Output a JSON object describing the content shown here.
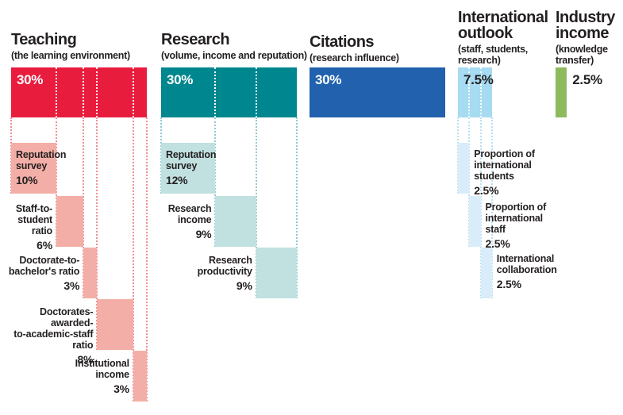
{
  "chart_data": {
    "type": "bar",
    "description": "University ranking methodology: five weighted pillars (stacked breakdown bars with sub-component blocks)",
    "unit": "percent of overall score",
    "total": 100,
    "text_color": "#231f20",
    "pillars": [
      {
        "id": "teaching",
        "title": "Teaching",
        "subtitle": "(the learning environment)",
        "weight": 30,
        "weight_label": "30%",
        "color": "#e81c3d",
        "sub_color": "#f3afa7",
        "line_color": "#f18f97",
        "weight_label_placement": "inside",
        "weight_label_color": "#ffffff",
        "components": [
          {
            "label": "Reputation\nsurvey",
            "pct_label": "10%",
            "weight": 10,
            "label_side": "inside"
          },
          {
            "label": "Staff-to-\nstudent\nratio",
            "pct_label": "6%",
            "weight": 6,
            "label_side": "left"
          },
          {
            "label": "Doctorate-to-\nbachelor's ratio",
            "pct_label": "3%",
            "weight": 3,
            "label_side": "left"
          },
          {
            "label": "Doctorates-awarded-\nto-academic-staff\nratio",
            "pct_label": "8%",
            "weight": 8,
            "label_side": "left"
          },
          {
            "label": "Institutional\nincome",
            "pct_label": "3%",
            "weight": 3,
            "label_side": "left"
          }
        ]
      },
      {
        "id": "research",
        "title": "Research",
        "subtitle": "(volume, income and reputation)",
        "weight": 30,
        "weight_label": "30%",
        "color": "#00868e",
        "sub_color": "#c1e1e0",
        "line_color": "#8fccd0",
        "weight_label_placement": "inside",
        "weight_label_color": "#ffffff",
        "components": [
          {
            "label": "Reputation\nsurvey",
            "pct_label": "12%",
            "weight": 12,
            "label_side": "inside"
          },
          {
            "label": "Research\nincome",
            "pct_label": "9%",
            "weight": 9,
            "label_side": "left"
          },
          {
            "label": "Research\nproductivity",
            "pct_label": "9%",
            "weight": 9,
            "label_side": "left"
          }
        ]
      },
      {
        "id": "citations",
        "title": "Citations",
        "subtitle": "(research influence)",
        "weight": 30,
        "weight_label": "30%",
        "color": "#2161ae",
        "sub_color": "",
        "line_color": "",
        "weight_label_placement": "inside",
        "weight_label_color": "#ffffff",
        "components": []
      },
      {
        "id": "international-outlook",
        "title": "International\noutlook",
        "subtitle": "(staff, students,\nresearch)",
        "weight": 7.5,
        "weight_label": "7.5%",
        "color": "#a6dbf2",
        "sub_color": "#d9ecf9",
        "line_color": "#b9e0f3",
        "weight_label_placement": "inside",
        "weight_label_color": "#231f20",
        "components": [
          {
            "label": "Proportion of\ninternational\nstudents",
            "pct_label": "2.5%",
            "weight": 2.5,
            "label_side": "right"
          },
          {
            "label": "Proportion of\ninternational\nstaff",
            "pct_label": "2.5%",
            "weight": 2.5,
            "label_side": "right"
          },
          {
            "label": "International\ncollaboration",
            "pct_label": "2.5%",
            "weight": 2.5,
            "label_side": "right"
          }
        ]
      },
      {
        "id": "industry-income",
        "title": "Industry\nincome",
        "subtitle": "(knowledge\ntransfer)",
        "weight": 2.5,
        "weight_label": "2.5%",
        "color": "#8eba5e",
        "sub_color": "",
        "line_color": "",
        "weight_label_placement": "right",
        "weight_label_color": "#231f20",
        "components": []
      }
    ]
  }
}
